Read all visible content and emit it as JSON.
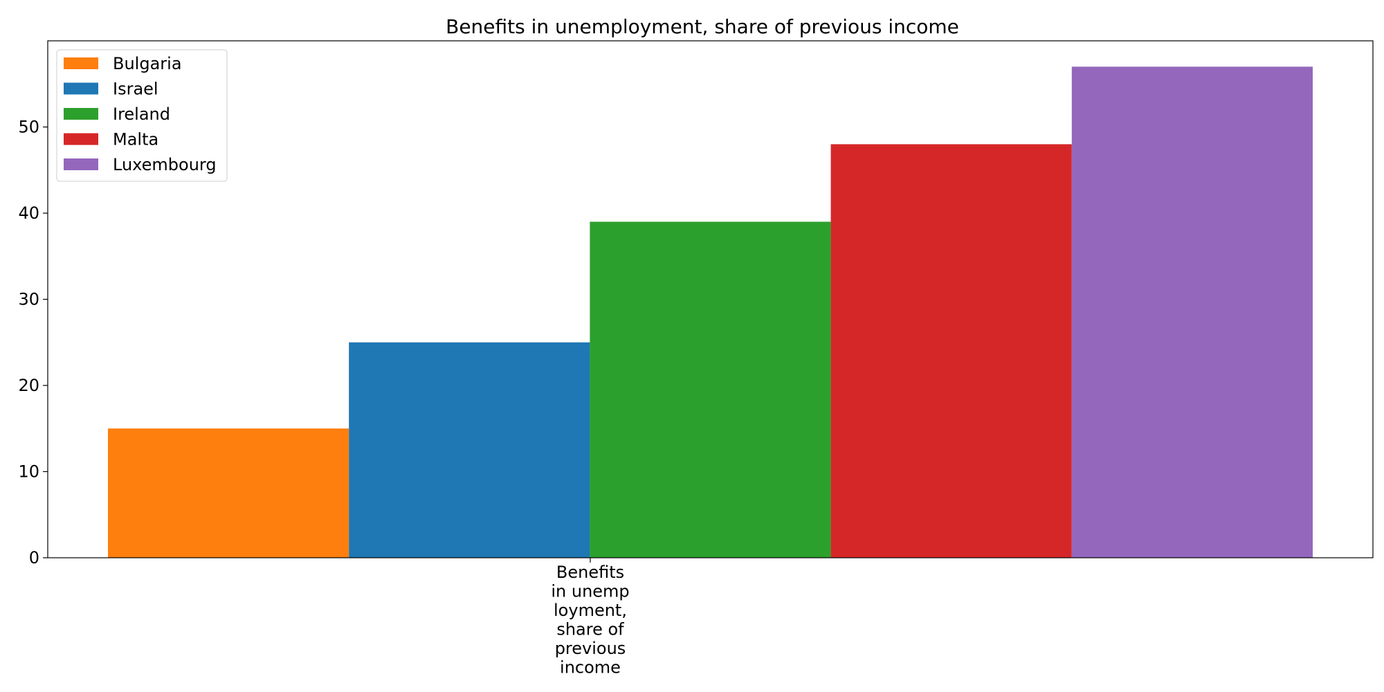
{
  "chart_data": {
    "type": "bar",
    "title": "Benefits in unemployment, share of previous income",
    "categories": [
      "Benefits in unemployment, share of previous income"
    ],
    "category_label_lines": [
      "Benefits",
      "in unemp",
      "loyment,",
      "share of",
      "previous",
      "income"
    ],
    "xlabel": "",
    "ylabel": "",
    "ylim": [
      0,
      60
    ],
    "yticks": [
      0,
      10,
      20,
      30,
      40,
      50
    ],
    "grid": false,
    "legend_position": "top-left",
    "series": [
      {
        "name": "Bulgaria",
        "values": [
          15
        ],
        "color": "#ff7f0e"
      },
      {
        "name": "Israel",
        "values": [
          25
        ],
        "color": "#1f77b4"
      },
      {
        "name": "Ireland",
        "values": [
          39
        ],
        "color": "#2ca02c"
      },
      {
        "name": "Malta",
        "values": [
          48
        ],
        "color": "#d62728"
      },
      {
        "name": "Luxembourg",
        "values": [
          57
        ],
        "color": "#9467bd"
      }
    ]
  }
}
